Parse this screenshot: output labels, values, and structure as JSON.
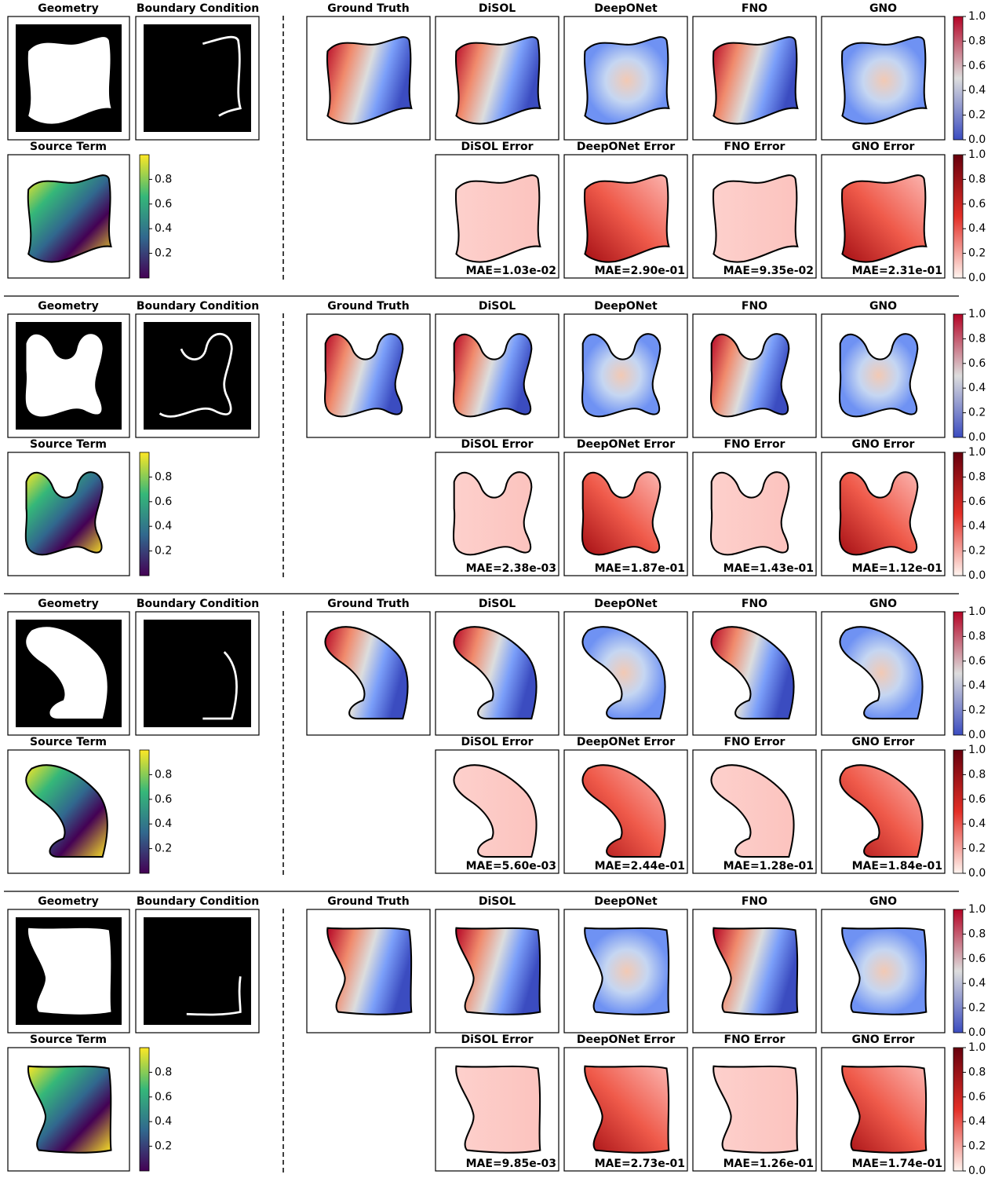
{
  "panel_titles": {
    "geometry": "Geometry",
    "boundary": "Boundary Condition",
    "source": "Source Term",
    "predictions": [
      "Ground Truth",
      "DiSOL",
      "DeepONet",
      "FNO",
      "GNO"
    ],
    "errors": [
      "DiSOL Error",
      "DeepONet Error",
      "FNO Error",
      "GNO Error"
    ]
  },
  "colorbars": {
    "source": {
      "ticks": [
        0.2,
        0.4,
        0.6,
        0.8
      ]
    },
    "prediction": {
      "ticks": [
        {
          "value": 0,
          "label": "0.0"
        },
        0.2,
        0.4,
        0.6,
        0.8,
        {
          "value": 1,
          "label": "1.0"
        }
      ]
    },
    "error": {
      "ticks": [
        {
          "value": 0,
          "label": "0.0"
        },
        0.2,
        0.4,
        0.6,
        0.8,
        {
          "value": 1,
          "label": "1.0"
        }
      ]
    }
  },
  "rows": [
    {
      "mae": [
        "MAE=1.03e-02",
        "MAE=2.90e-01",
        "MAE=9.35e-02",
        "MAE=2.31e-01"
      ]
    },
    {
      "mae": [
        "MAE=2.38e-03",
        "MAE=1.87e-01",
        "MAE=1.43e-01",
        "MAE=1.12e-01"
      ]
    },
    {
      "mae": [
        "MAE=5.60e-03",
        "MAE=2.44e-01",
        "MAE=1.28e-01",
        "MAE=1.84e-01"
      ]
    },
    {
      "mae": [
        "MAE=9.85e-03",
        "MAE=2.73e-01",
        "MAE=1.26e-01",
        "MAE=1.74e-01"
      ]
    }
  ]
}
